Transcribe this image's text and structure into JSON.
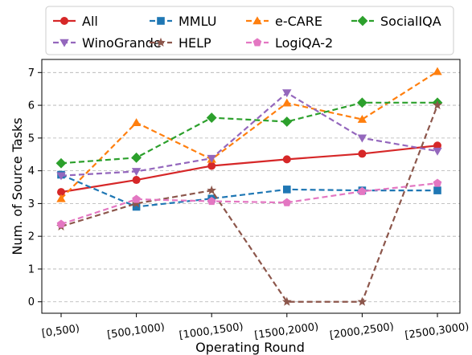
{
  "chart_data": {
    "type": "line",
    "title": "",
    "xlabel": "Operating Round",
    "ylabel": "Num. of Source Tasks",
    "ylim": [
      -0.35,
      7.4
    ],
    "yticks": [
      0,
      1,
      2,
      3,
      4,
      5,
      6,
      7
    ],
    "grid": "horizontal-dashed",
    "legend_position": "top",
    "categories": [
      "[0,500)",
      "[500,1000)",
      "[1000,1500)",
      "[1500,2000)",
      "[2000,2500)",
      "[2500,3000)"
    ],
    "series": [
      {
        "name": "All",
        "color": "#d62728",
        "marker": "circle",
        "dashed": false,
        "values": [
          3.35,
          3.72,
          4.15,
          4.35,
          4.52,
          4.77
        ]
      },
      {
        "name": "MMLU",
        "color": "#1f77b4",
        "marker": "square",
        "dashed": true,
        "values": [
          3.88,
          2.9,
          3.15,
          3.43,
          3.4,
          3.4
        ]
      },
      {
        "name": "e-CARE",
        "color": "#ff7f0e",
        "marker": "triangle-up",
        "dashed": true,
        "values": [
          3.15,
          5.47,
          4.35,
          6.07,
          5.57,
          7.03
        ]
      },
      {
        "name": "SocialIQA",
        "color": "#2ca02c",
        "marker": "diamond",
        "dashed": true,
        "values": [
          4.23,
          4.4,
          5.62,
          5.5,
          6.08,
          6.08
        ]
      },
      {
        "name": "WinoGrande",
        "color": "#9467bd",
        "marker": "triangle-down",
        "dashed": true,
        "values": [
          3.85,
          3.98,
          4.38,
          6.38,
          5.0,
          4.6
        ]
      },
      {
        "name": "HELP",
        "color": "#8c564b",
        "marker": "star",
        "dashed": true,
        "values": [
          2.3,
          3.0,
          3.4,
          0.0,
          0.0,
          6.0
        ]
      },
      {
        "name": "LogiQA-2",
        "color": "#e377c2",
        "marker": "pentagon",
        "dashed": true,
        "values": [
          2.37,
          3.13,
          3.07,
          3.03,
          3.37,
          3.62
        ]
      }
    ]
  }
}
